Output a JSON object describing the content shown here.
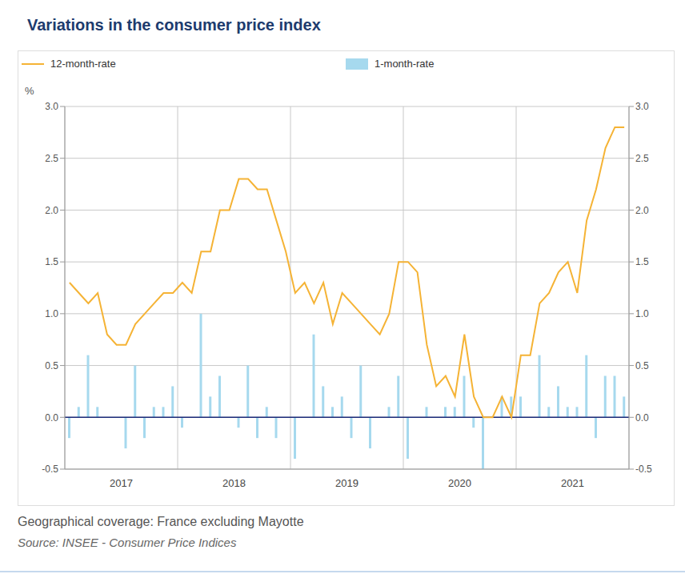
{
  "chart_data": {
    "type": "combo",
    "title": "Variations in the consumer price index",
    "y_label": "%",
    "footnote": "Geographical coverage: France excluding Mayotte",
    "source": "Source: INSEE - Consumer Price Indices",
    "legend": "top",
    "grid": true,
    "categories": [
      null,
      null,
      null,
      null,
      null,
      null,
      "2017",
      null,
      null,
      null,
      null,
      null,
      null,
      null,
      null,
      null,
      null,
      null,
      "2018",
      null,
      null,
      null,
      null,
      null,
      null,
      null,
      null,
      null,
      null,
      null,
      "2019",
      null,
      null,
      null,
      null,
      null,
      null,
      null,
      null,
      null,
      null,
      null,
      "2020",
      null,
      null,
      null,
      null,
      null,
      null,
      null,
      null,
      null,
      null,
      null,
      "2021",
      null,
      null,
      null,
      null,
      null
    ],
    "series": [
      {
        "name": "12-month-rate",
        "type": "line",
        "color": "#f5b335",
        "values": [
          1.3,
          1.2,
          1.1,
          1.2,
          0.8,
          0.7,
          0.7,
          0.9,
          1.0,
          1.1,
          1.2,
          1.2,
          1.3,
          1.2,
          1.6,
          1.6,
          2.0,
          2.0,
          2.3,
          2.3,
          2.2,
          2.2,
          1.9,
          1.6,
          1.2,
          1.3,
          1.1,
          1.3,
          0.9,
          1.2,
          1.1,
          1.0,
          0.9,
          0.8,
          1.0,
          1.5,
          1.5,
          1.4,
          0.7,
          0.3,
          0.4,
          0.2,
          0.8,
          0.2,
          0.0,
          0.0,
          0.2,
          0.0,
          0.6,
          0.6,
          1.1,
          1.2,
          1.4,
          1.5,
          1.2,
          1.9,
          2.2,
          2.6,
          2.8,
          2.8
        ]
      },
      {
        "name": "1-month-rate",
        "type": "bar",
        "color": "#a6d9ee",
        "values": [
          -0.2,
          0.1,
          0.6,
          0.1,
          0.0,
          0.0,
          -0.3,
          0.5,
          -0.2,
          0.1,
          0.1,
          0.3,
          -0.1,
          0.0,
          1.0,
          0.2,
          0.4,
          0.0,
          -0.1,
          0.5,
          -0.2,
          0.1,
          -0.2,
          0.0,
          -0.4,
          0.0,
          0.8,
          0.3,
          0.1,
          0.2,
          -0.2,
          0.5,
          -0.3,
          0.0,
          0.1,
          0.4,
          -0.4,
          0.0,
          0.1,
          0.0,
          0.1,
          0.1,
          0.4,
          -0.1,
          -0.5,
          0.0,
          0.2,
          0.2,
          0.2,
          0.0,
          0.6,
          0.1,
          0.3,
          0.1,
          0.1,
          0.6,
          -0.2,
          0.4,
          0.4,
          0.2
        ]
      }
    ],
    "ylim": [
      -0.5,
      3
    ],
    "yticks": [
      -0.5,
      {
        "value": 0,
        "label": "0.0"
      },
      0.5,
      {
        "value": 1,
        "label": "1.0"
      },
      1.5,
      {
        "value": 2,
        "label": "2.0"
      },
      2.5,
      {
        "value": 3,
        "label": "3.0"
      }
    ],
    "y2lim": [
      -0.5,
      3
    ],
    "y2ticks": [
      -0.5,
      {
        "value": 0,
        "label": "0.0"
      },
      0.5,
      {
        "value": 1,
        "label": "1.0"
      },
      1.5,
      {
        "value": 2,
        "label": "2.0"
      },
      2.5,
      {
        "value": 3,
        "label": "3.0"
      }
    ]
  }
}
